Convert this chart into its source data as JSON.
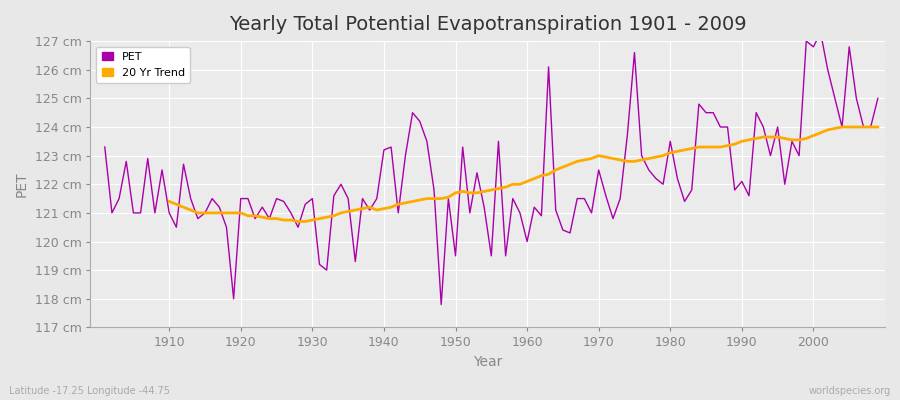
{
  "title": "Yearly Total Potential Evapotranspiration 1901 - 2009",
  "xlabel": "Year",
  "ylabel": "PET",
  "subtitle": "Latitude -17.25 Longitude -44.75",
  "watermark": "worldspecies.org",
  "ylim": [
    117,
    127
  ],
  "ytick_labels": [
    "117 cm",
    "118 cm",
    "119 cm",
    "120 cm",
    "121 cm",
    "122 cm",
    "123 cm",
    "124 cm",
    "125 cm",
    "126 cm",
    "127 cm"
  ],
  "ytick_values": [
    117,
    118,
    119,
    120,
    121,
    122,
    123,
    124,
    125,
    126,
    127
  ],
  "years": [
    1901,
    1902,
    1903,
    1904,
    1905,
    1906,
    1907,
    1908,
    1909,
    1910,
    1911,
    1912,
    1913,
    1914,
    1915,
    1916,
    1917,
    1918,
    1919,
    1920,
    1921,
    1922,
    1923,
    1924,
    1925,
    1926,
    1927,
    1928,
    1929,
    1930,
    1931,
    1932,
    1933,
    1934,
    1935,
    1936,
    1937,
    1938,
    1939,
    1940,
    1941,
    1942,
    1943,
    1944,
    1945,
    1946,
    1947,
    1948,
    1949,
    1950,
    1951,
    1952,
    1953,
    1954,
    1955,
    1956,
    1957,
    1958,
    1959,
    1960,
    1961,
    1962,
    1963,
    1964,
    1965,
    1966,
    1967,
    1968,
    1969,
    1970,
    1971,
    1972,
    1973,
    1974,
    1975,
    1976,
    1977,
    1978,
    1979,
    1980,
    1981,
    1982,
    1983,
    1984,
    1985,
    1986,
    1987,
    1988,
    1989,
    1990,
    1991,
    1992,
    1993,
    1994,
    1995,
    1996,
    1997,
    1998,
    1999,
    2000,
    2001,
    2002,
    2003,
    2004,
    2005,
    2006,
    2007,
    2008,
    2009
  ],
  "pet": [
    123.3,
    121.0,
    121.5,
    122.8,
    121.0,
    121.0,
    122.9,
    121.0,
    122.5,
    121.0,
    120.5,
    122.7,
    121.5,
    120.8,
    121.0,
    121.5,
    121.2,
    120.5,
    118.0,
    121.5,
    121.5,
    120.8,
    121.2,
    120.8,
    121.5,
    121.4,
    121.0,
    120.5,
    121.3,
    121.5,
    119.2,
    119.0,
    121.6,
    122.0,
    121.5,
    119.3,
    121.5,
    121.1,
    121.5,
    123.2,
    123.3,
    121.0,
    123.0,
    124.5,
    124.2,
    123.5,
    121.8,
    117.8,
    121.5,
    119.5,
    123.3,
    121.0,
    122.4,
    121.2,
    119.5,
    123.5,
    119.5,
    121.5,
    121.0,
    120.0,
    121.2,
    120.9,
    126.1,
    121.1,
    120.4,
    120.3,
    121.5,
    121.5,
    121.0,
    122.5,
    121.6,
    120.8,
    121.5,
    123.7,
    126.6,
    123.0,
    122.5,
    122.2,
    122.0,
    123.5,
    122.2,
    121.4,
    121.8,
    124.8,
    124.5,
    124.5,
    124.0,
    124.0,
    121.8,
    122.1,
    121.6,
    124.5,
    124.0,
    123.0,
    124.0,
    122.0,
    123.5,
    123.0,
    127.0,
    126.8,
    127.3,
    126.0,
    125.0,
    124.0,
    126.8,
    125.0,
    124.0,
    124.0,
    125.0
  ],
  "trend_years": [
    1910,
    1911,
    1912,
    1913,
    1914,
    1915,
    1916,
    1917,
    1918,
    1919,
    1920,
    1921,
    1922,
    1923,
    1924,
    1925,
    1926,
    1927,
    1928,
    1929,
    1930,
    1931,
    1932,
    1933,
    1934,
    1935,
    1936,
    1937,
    1938,
    1939,
    1940,
    1941,
    1942,
    1943,
    1944,
    1945,
    1946,
    1947,
    1948,
    1949,
    1950,
    1951,
    1952,
    1953,
    1954,
    1955,
    1956,
    1957,
    1958,
    1959,
    1960,
    1961,
    1962,
    1963,
    1964,
    1965,
    1966,
    1967,
    1968,
    1969,
    1970,
    1971,
    1972,
    1973,
    1974,
    1975,
    1976,
    1977,
    1978,
    1979,
    1980,
    1981,
    1982,
    1983,
    1984,
    1985,
    1986,
    1987,
    1988,
    1989,
    1990,
    1991,
    1992,
    1993,
    1994,
    1995,
    1996,
    1997,
    1998,
    1999,
    2000,
    2001,
    2002,
    2003,
    2004,
    2005,
    2006,
    2007,
    2008,
    2009
  ],
  "trend": [
    121.4,
    121.3,
    121.2,
    121.1,
    121.0,
    121.0,
    121.0,
    121.0,
    121.0,
    121.0,
    121.0,
    120.9,
    120.9,
    120.85,
    120.8,
    120.8,
    120.75,
    120.75,
    120.7,
    120.7,
    120.75,
    120.8,
    120.85,
    120.9,
    121.0,
    121.05,
    121.1,
    121.15,
    121.2,
    121.1,
    121.15,
    121.2,
    121.3,
    121.35,
    121.4,
    121.45,
    121.5,
    121.5,
    121.5,
    121.55,
    121.7,
    121.75,
    121.7,
    121.7,
    121.75,
    121.8,
    121.85,
    121.9,
    122.0,
    122.0,
    122.1,
    122.2,
    122.3,
    122.35,
    122.5,
    122.6,
    122.7,
    122.8,
    122.85,
    122.9,
    123.0,
    122.95,
    122.9,
    122.85,
    122.8,
    122.8,
    122.85,
    122.9,
    122.95,
    123.0,
    123.1,
    123.15,
    123.2,
    123.25,
    123.3,
    123.3,
    123.3,
    123.3,
    123.35,
    123.4,
    123.5,
    123.55,
    123.6,
    123.65,
    123.65,
    123.65,
    123.6,
    123.55,
    123.55,
    123.6,
    123.7,
    123.8,
    123.9,
    123.95,
    124.0,
    124.0,
    124.0,
    124.0,
    124.0,
    124.0
  ],
  "pet_color": "#aa00aa",
  "trend_color": "#ffaa00",
  "bg_color": "#e8e8e8",
  "plot_bg_color": "#ebebeb",
  "grid_color": "#ffffff",
  "title_fontsize": 14,
  "axis_label_fontsize": 10,
  "tick_fontsize": 9,
  "xticks": [
    1910,
    1920,
    1930,
    1940,
    1950,
    1960,
    1970,
    1980,
    1990,
    2000
  ],
  "xlim": [
    1899,
    2010
  ]
}
